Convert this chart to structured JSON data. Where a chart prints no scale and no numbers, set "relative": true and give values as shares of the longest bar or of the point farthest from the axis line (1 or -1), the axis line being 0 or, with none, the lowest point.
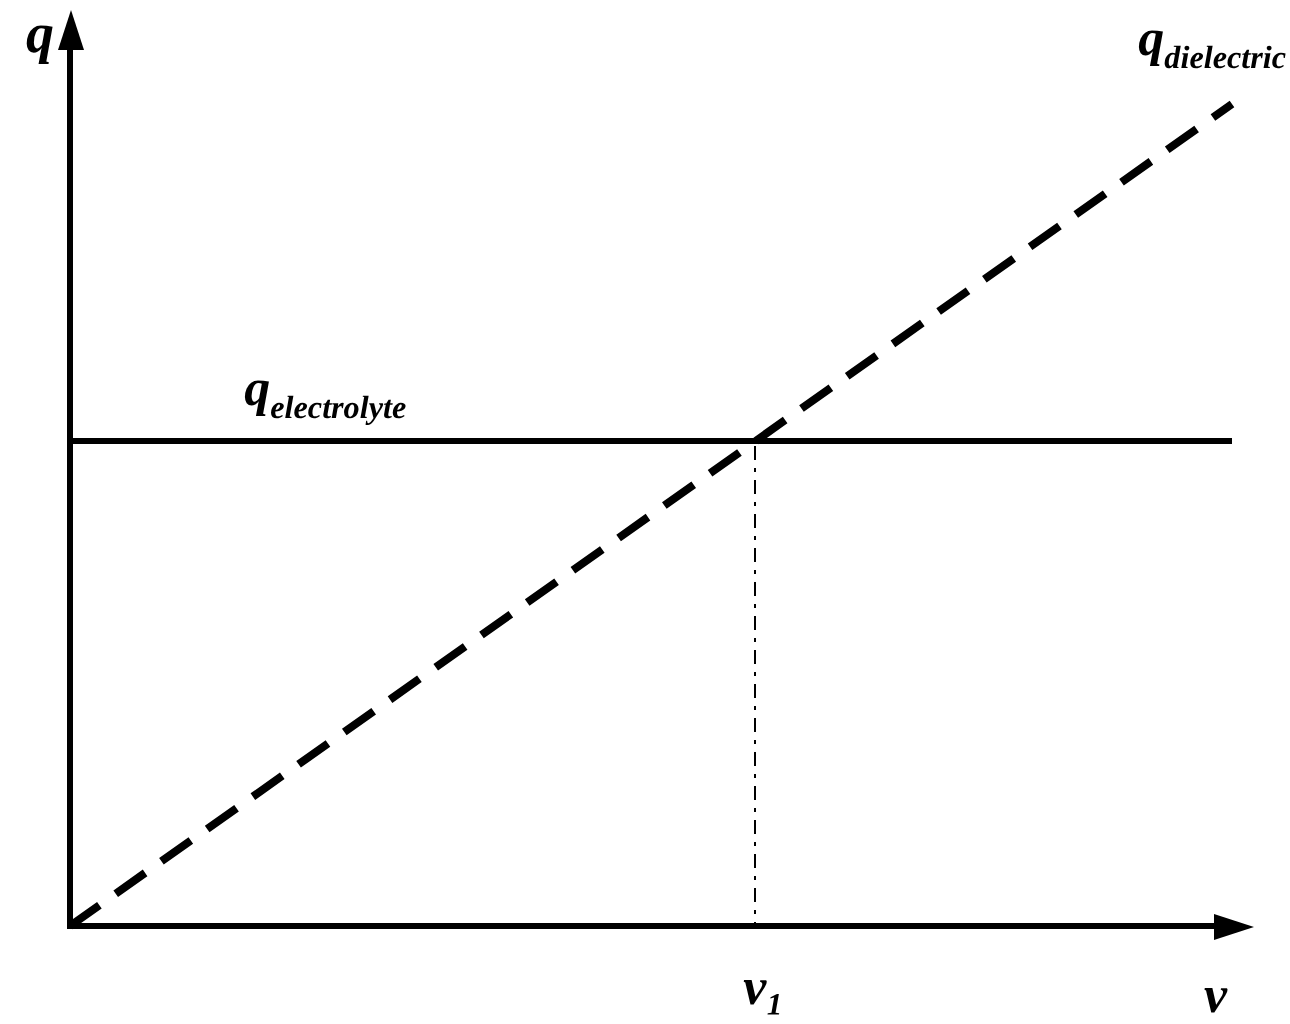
{
  "chart_data": {
    "type": "line",
    "xlabel": "v",
    "ylabel": "q",
    "relative": true,
    "categories": [
      null,
      null
    ],
    "annotations": [
      "v₁"
    ],
    "series": [
      {
        "name": "q$_{electrolyte}$",
        "color": "#000000",
        "values": [
          0.59,
          0.59
        ],
        "line_style": "solid"
      },
      {
        "name": "q$_{dielectric}$",
        "color": "#000000",
        "values": [
          0,
          1
        ],
        "line_style": "dashed"
      }
    ]
  }
}
